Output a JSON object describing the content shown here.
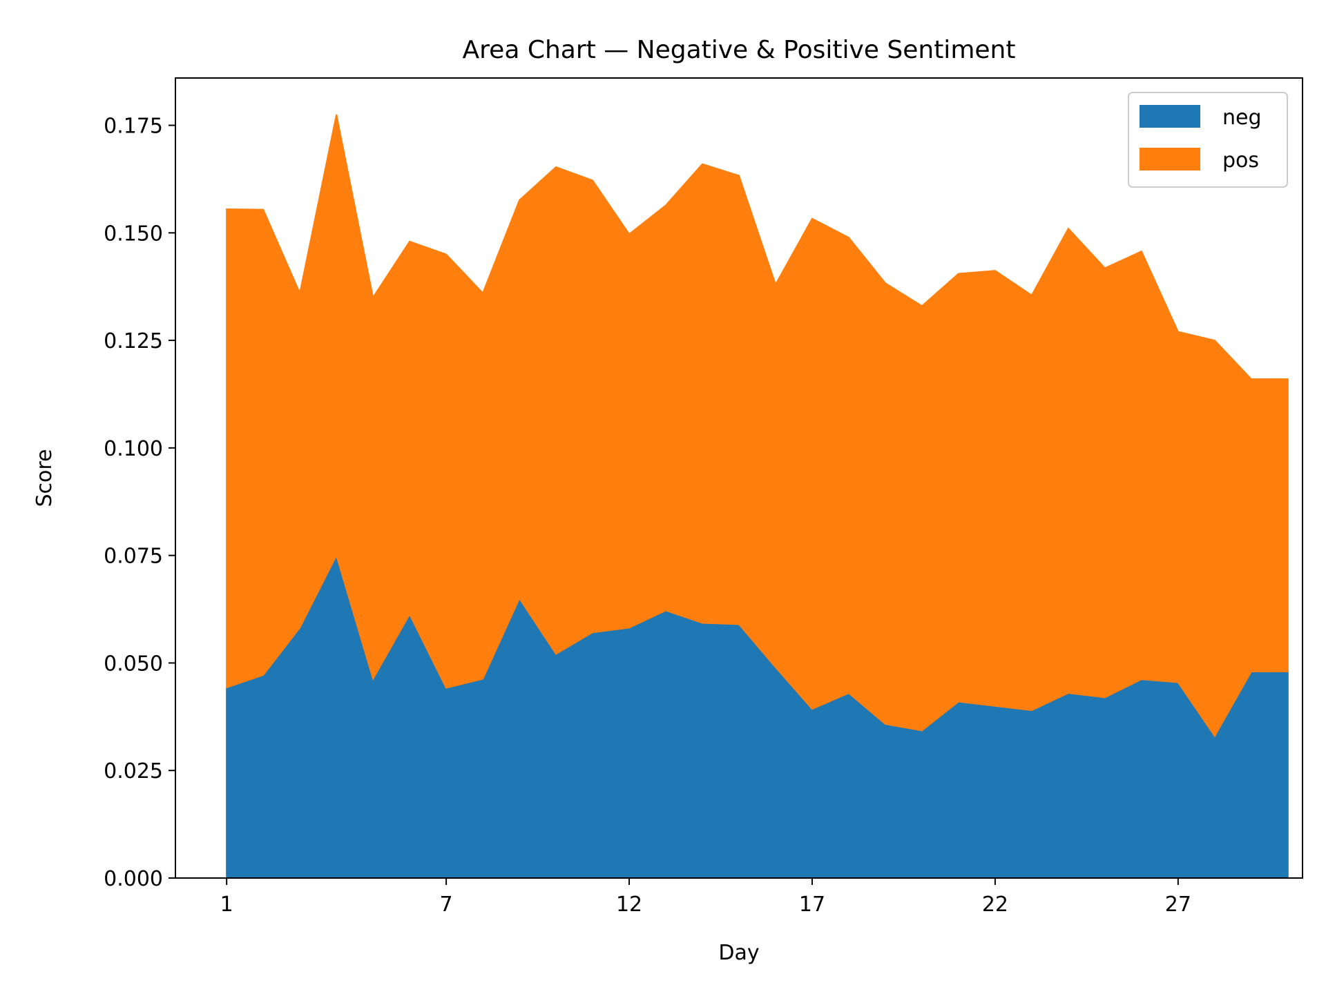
{
  "chart_data": {
    "type": "area",
    "stacked": true,
    "title": "Area Chart — Negative & Positive Sentiment",
    "xlabel": "Day",
    "ylabel": "Score",
    "xlim": [
      -0.4,
      30.4
    ],
    "ylim": [
      0.0,
      0.186
    ],
    "x_ticks": [
      1,
      7,
      12,
      17,
      22,
      27
    ],
    "y_ticks": [
      0.0,
      0.025,
      0.05,
      0.075,
      0.1,
      0.125,
      0.15,
      0.175
    ],
    "y_tick_labels": [
      "0.000",
      "0.025",
      "0.050",
      "0.075",
      "0.100",
      "0.125",
      "0.150",
      "0.175"
    ],
    "x": [
      1,
      2,
      3,
      4,
      5,
      6,
      7,
      8,
      9,
      10,
      11,
      12,
      13,
      14,
      15,
      16,
      17,
      18,
      19,
      20,
      21,
      22,
      23,
      24,
      25,
      26,
      27,
      28,
      29,
      30
    ],
    "series": [
      {
        "name": "neg",
        "color": "#1f77b4",
        "values": [
          0.0443,
          0.0472,
          0.0582,
          0.075,
          0.0463,
          0.0613,
          0.0442,
          0.0463,
          0.065,
          0.0521,
          0.0571,
          0.0582,
          0.0622,
          0.0593,
          0.059,
          0.049,
          0.0393,
          0.043,
          0.0358,
          0.0343,
          0.041,
          0.04,
          0.039,
          0.043,
          0.042,
          0.0462,
          0.0455,
          0.033,
          0.048,
          0.048
        ]
      },
      {
        "name": "pos",
        "color": "#ff7f0e",
        "values": [
          0.1112,
          0.1082,
          0.0778,
          0.1025,
          0.0887,
          0.0867,
          0.1008,
          0.0897,
          0.0926,
          0.1132,
          0.1051,
          0.0915,
          0.0942,
          0.1067,
          0.1043,
          0.089,
          0.114,
          0.1059,
          0.1025,
          0.0987,
          0.0995,
          0.1012,
          0.0965,
          0.108,
          0.0998,
          0.0995,
          0.0815,
          0.092,
          0.068,
          0.068
        ]
      }
    ],
    "legend_position": "top-right",
    "grid": false
  }
}
